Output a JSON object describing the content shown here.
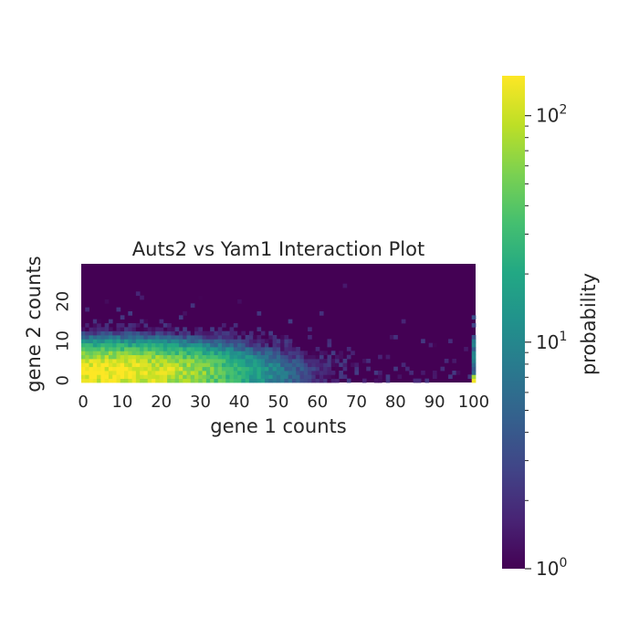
{
  "chart_data": {
    "type": "heatmap",
    "title": "Auts2 vs Yam1 Interaction Plot",
    "xlabel": "gene 1 counts",
    "ylabel": "gene 2 counts",
    "x_range": [
      0,
      100
    ],
    "y_range": [
      0,
      30
    ],
    "x_ticks": [
      "0",
      "10",
      "20",
      "30",
      "40",
      "50",
      "60",
      "70",
      "80",
      "90",
      "100"
    ],
    "y_ticks": [
      "0",
      "10",
      "20"
    ],
    "colormap": "viridis",
    "colorbar": {
      "label": "probability",
      "scale": "log",
      "range": [
        1,
        150
      ],
      "major_ticks": [
        {
          "base": "10",
          "exp": "0",
          "value": 1
        },
        {
          "base": "10",
          "exp": "1",
          "value": 10
        },
        {
          "base": "10",
          "exp": "2",
          "value": 100
        }
      ]
    },
    "background_color": "#440154",
    "peak": {
      "gene1": 7,
      "gene2": 2,
      "probability": 150
    },
    "saturation_column": {
      "gene1": 100,
      "description": "accumulated counts at the right edge"
    }
  }
}
